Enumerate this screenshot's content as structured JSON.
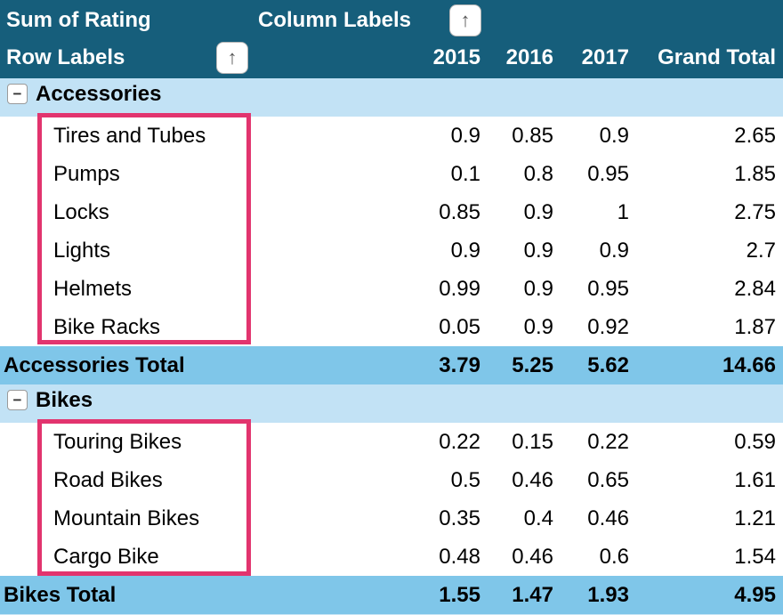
{
  "header": {
    "sum_label": "Sum of Rating",
    "column_labels": "Column Labels",
    "row_labels": "Row Labels",
    "years": [
      "2015",
      "2016",
      "2017"
    ],
    "grand_total": "Grand Total"
  },
  "icons": {
    "sort_up": "↑",
    "collapse": "−"
  },
  "colors": {
    "header_teal": "#165E7B",
    "group_row_blue": "#C2E2F5",
    "total_row_blue": "#7FC6E9",
    "annotation_pink": "#E2346E"
  },
  "table": {
    "rows": [
      {
        "type": "group",
        "label": "Accessories",
        "v": [
          "",
          "",
          "",
          ""
        ]
      },
      {
        "type": "item",
        "label": "Tires and Tubes",
        "v": [
          "0.9",
          "0.85",
          "0.9",
          "2.65"
        ]
      },
      {
        "type": "item",
        "label": "Pumps",
        "v": [
          "0.1",
          "0.8",
          "0.95",
          "1.85"
        ]
      },
      {
        "type": "item",
        "label": "Locks",
        "v": [
          "0.85",
          "0.9",
          "1",
          "2.75"
        ]
      },
      {
        "type": "item",
        "label": "Lights",
        "v": [
          "0.9",
          "0.9",
          "0.9",
          "2.7"
        ]
      },
      {
        "type": "item",
        "label": "Helmets",
        "v": [
          "0.99",
          "0.9",
          "0.95",
          "2.84"
        ]
      },
      {
        "type": "item",
        "label": "Bike Racks",
        "v": [
          "0.05",
          "0.9",
          "0.92",
          "1.87"
        ]
      },
      {
        "type": "total",
        "label": "Accessories Total",
        "v": [
          "3.79",
          "5.25",
          "5.62",
          "14.66"
        ]
      },
      {
        "type": "group",
        "label": "Bikes",
        "v": [
          "",
          "",
          "",
          ""
        ]
      },
      {
        "type": "item",
        "label": "Touring Bikes",
        "v": [
          "0.22",
          "0.15",
          "0.22",
          "0.59"
        ]
      },
      {
        "type": "item",
        "label": "Road Bikes",
        "v": [
          "0.5",
          "0.46",
          "0.65",
          "1.61"
        ]
      },
      {
        "type": "item",
        "label": "Mountain Bikes",
        "v": [
          "0.35",
          "0.4",
          "0.46",
          "1.21"
        ]
      },
      {
        "type": "item",
        "label": "Cargo Bike",
        "v": [
          "0.48",
          "0.46",
          "0.6",
          "1.54"
        ]
      },
      {
        "type": "total",
        "label": "Bikes Total",
        "v": [
          "1.55",
          "1.47",
          "1.93",
          "4.95"
        ]
      }
    ]
  }
}
